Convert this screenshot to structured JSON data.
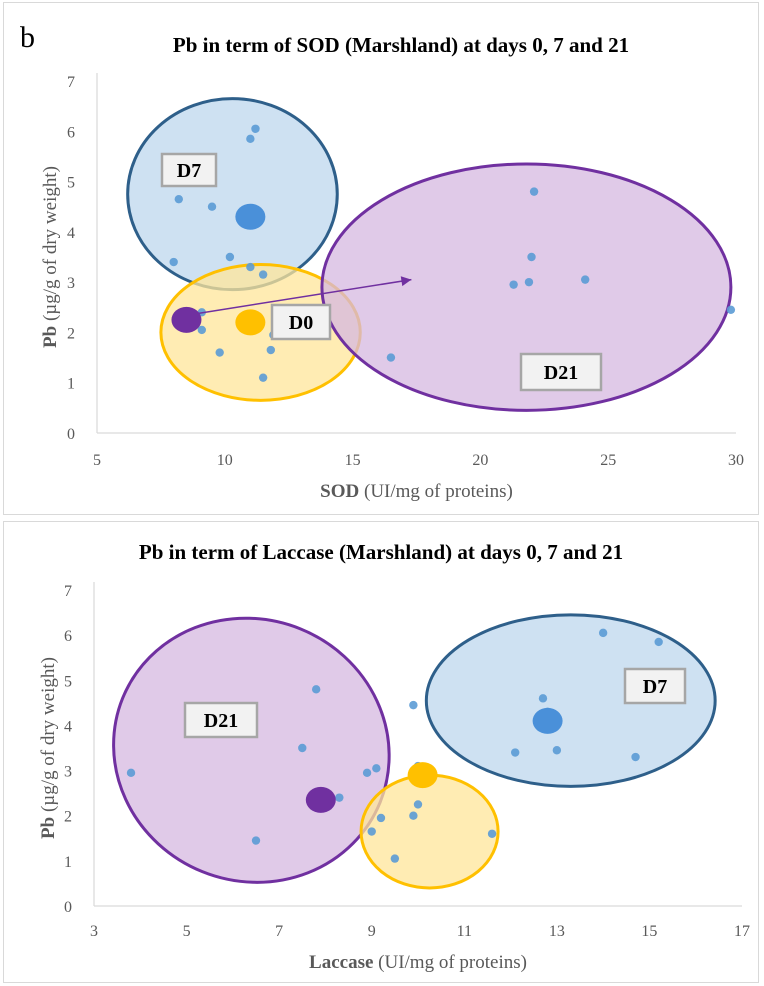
{
  "panel_letter": "b",
  "chart_data": [
    {
      "type": "scatter",
      "title": "Pb in term of SOD (Marshland) at days 0, 7 and 21",
      "xlabel_bold": "SOD",
      "xlabel_rest": " (UI/mg of proteins)",
      "ylabel_bold": "Pb",
      "ylabel_rest": " (µg/g of dry weight)",
      "xlim": [
        5,
        30
      ],
      "ylim": [
        0,
        7
      ],
      "xticks": [
        "5",
        "10",
        "15",
        "20",
        "25",
        "30"
      ],
      "yticks": [
        "0",
        "1",
        "2",
        "3",
        "4",
        "5",
        "6",
        "7"
      ],
      "grid": false,
      "points": [
        {
          "x": 8.0,
          "y": 3.4
        },
        {
          "x": 8.2,
          "y": 4.65
        },
        {
          "x": 9.5,
          "y": 4.5
        },
        {
          "x": 10.2,
          "y": 3.5
        },
        {
          "x": 11.0,
          "y": 3.3
        },
        {
          "x": 11.0,
          "y": 5.85
        },
        {
          "x": 11.2,
          "y": 6.05
        },
        {
          "x": 11.5,
          "y": 3.15
        },
        {
          "x": 9.1,
          "y": 2.4
        },
        {
          "x": 9.1,
          "y": 2.05
        },
        {
          "x": 9.8,
          "y": 1.6
        },
        {
          "x": 11.8,
          "y": 1.65
        },
        {
          "x": 11.9,
          "y": 1.95
        },
        {
          "x": 11.5,
          "y": 1.1
        },
        {
          "x": 16.5,
          "y": 1.5
        },
        {
          "x": 21.3,
          "y": 2.95
        },
        {
          "x": 21.9,
          "y": 3.0
        },
        {
          "x": 22.0,
          "y": 3.5
        },
        {
          "x": 22.1,
          "y": 4.8
        },
        {
          "x": 24.1,
          "y": 3.05
        },
        {
          "x": 29.8,
          "y": 2.45
        }
      ],
      "means": [
        {
          "x": 11.0,
          "y": 4.3,
          "color": "#4a90d9"
        },
        {
          "x": 11.0,
          "y": 2.2,
          "color": "#ffc000"
        },
        {
          "x": 8.5,
          "y": 2.25,
          "color": "#7030a0"
        }
      ],
      "groups": [
        {
          "label": "D7",
          "color": "#2e5f8a",
          "fill": "#bdd7ee",
          "cx": 10.3,
          "cy": 4.75,
          "rx": 4.1,
          "ry": 1.9
        },
        {
          "label": "D0",
          "color": "#ffc000",
          "fill": "#ffe699",
          "cx": 11.4,
          "cy": 2.0,
          "rx": 3.9,
          "ry": 1.35
        },
        {
          "label": "D21",
          "color": "#7030a0",
          "fill": "#d5b8e0",
          "cx": 21.8,
          "cy": 2.9,
          "rx": 8.0,
          "ry": 2.45
        }
      ],
      "arrow": {
        "x1": 8.6,
        "y1": 2.35,
        "x2": 17.3,
        "y2": 3.05,
        "color": "#7030a0"
      }
    },
    {
      "type": "scatter",
      "title": "Pb in term of Laccase (Marshland) at days 0, 7 and 21",
      "xlabel_bold": "Laccase",
      "xlabel_rest": " (UI/mg of proteins)",
      "ylabel_bold": "Pb",
      "ylabel_rest": " (µg/g of dry weight)",
      "xlim": [
        3,
        17
      ],
      "ylim": [
        0,
        7
      ],
      "xticks": [
        "3",
        "5",
        "7",
        "9",
        "11",
        "13",
        "15",
        "17"
      ],
      "yticks": [
        "0",
        "1",
        "2",
        "3",
        "4",
        "5",
        "6",
        "7"
      ],
      "grid": false,
      "points": [
        {
          "x": 3.8,
          "y": 2.95
        },
        {
          "x": 6.5,
          "y": 1.45
        },
        {
          "x": 7.5,
          "y": 3.5
        },
        {
          "x": 7.8,
          "y": 4.8
        },
        {
          "x": 8.3,
          "y": 2.4
        },
        {
          "x": 8.9,
          "y": 2.95
        },
        {
          "x": 9.1,
          "y": 3.05
        },
        {
          "x": 9.0,
          "y": 1.65
        },
        {
          "x": 9.2,
          "y": 1.95
        },
        {
          "x": 9.5,
          "y": 1.05
        },
        {
          "x": 9.9,
          "y": 2.0
        },
        {
          "x": 10.0,
          "y": 2.25
        },
        {
          "x": 10.0,
          "y": 3.1
        },
        {
          "x": 11.6,
          "y": 1.6
        },
        {
          "x": 9.9,
          "y": 4.45
        },
        {
          "x": 12.1,
          "y": 3.4
        },
        {
          "x": 12.7,
          "y": 4.6
        },
        {
          "x": 12.8,
          "y": 4.3
        },
        {
          "x": 13.0,
          "y": 3.45
        },
        {
          "x": 14.0,
          "y": 6.05
        },
        {
          "x": 14.7,
          "y": 3.3
        },
        {
          "x": 15.2,
          "y": 5.85
        }
      ],
      "means": [
        {
          "x": 12.8,
          "y": 4.1,
          "color": "#4a90d9"
        },
        {
          "x": 10.1,
          "y": 2.9,
          "color": "#ffc000"
        },
        {
          "x": 7.9,
          "y": 2.35,
          "color": "#7030a0"
        }
      ],
      "groups": [
        {
          "label": "D21",
          "color": "#7030a0",
          "fill": "#d5b8e0",
          "cx": 6.4,
          "cy": 3.45,
          "rx": 3.0,
          "ry": 2.9,
          "rotate": 22
        },
        {
          "label": "D0",
          "color": "#ffc000",
          "fill": "#ffe699",
          "cx": 10.25,
          "cy": 1.65,
          "rx": 1.48,
          "ry": 1.25,
          "hideLabel": true
        },
        {
          "label": "D7",
          "color": "#2e5f8a",
          "fill": "#bdd7ee",
          "cx": 13.3,
          "cy": 4.55,
          "rx": 3.12,
          "ry": 1.9
        }
      ]
    }
  ],
  "label_boxes": {
    "top": {
      "D7": "D7",
      "D0": "D0",
      "D21": "D21"
    },
    "bottom": {
      "D21": "D21",
      "D7": "D7"
    }
  }
}
